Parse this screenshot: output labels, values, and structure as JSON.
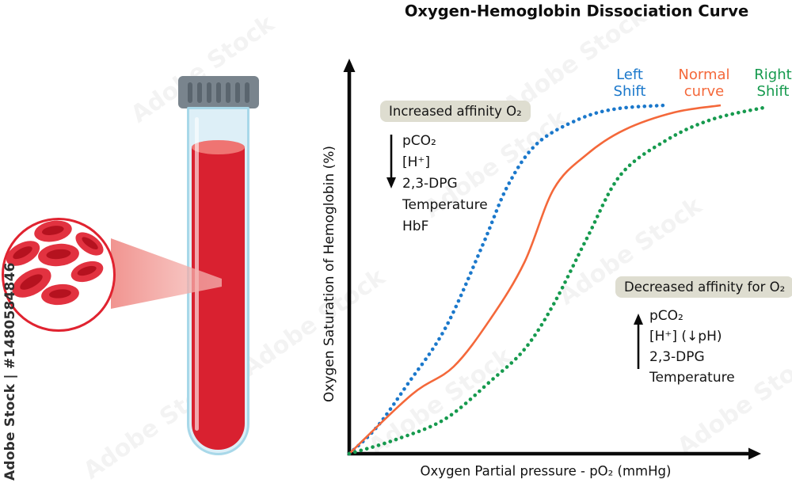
{
  "watermark": {
    "sidebar_label": "Adobe Stock | #1480584846",
    "tile_label": "Adobe Stock"
  },
  "chart_data": {
    "type": "line",
    "title": "Oxygen-Hemoglobin Dissociation Curve",
    "xlabel": "Oxygen Partial pressure - pO₂ (mmHg)",
    "ylabel": "Oxygen Saturation of Hemoglobin (%)",
    "x_range_mmHg": [
      0,
      100
    ],
    "y_range_percent": [
      0,
      100
    ],
    "axis_ticks_shown": false,
    "grid": false,
    "legend_position": "top-right",
    "series": [
      {
        "name": "Left Shift",
        "label": "Left\nShift",
        "color": "#1b78cb",
        "style": "dotted",
        "points": [
          [
            0,
            0
          ],
          [
            6.5,
            7.5
          ],
          [
            14,
            20
          ],
          [
            23,
            36
          ],
          [
            32,
            60
          ],
          [
            38,
            77
          ],
          [
            45,
            89
          ],
          [
            55,
            96
          ],
          [
            64,
            99
          ],
          [
            75.5,
            100
          ]
        ]
      },
      {
        "name": "Normal curve",
        "label": "Normal\ncurve",
        "color": "#f4683a",
        "style": "solid",
        "points": [
          [
            0,
            0
          ],
          [
            15,
            17
          ],
          [
            25,
            25
          ],
          [
            34,
            39
          ],
          [
            42,
            55
          ],
          [
            49,
            76
          ],
          [
            57,
            86
          ],
          [
            66,
            93
          ],
          [
            78,
            98
          ],
          [
            89,
            100
          ]
        ]
      },
      {
        "name": "Right Shift",
        "label": "Right\nShift",
        "color": "#169a4e",
        "style": "dotted",
        "points": [
          [
            0,
            0
          ],
          [
            11,
            4
          ],
          [
            23,
            10
          ],
          [
            34,
            21
          ],
          [
            42,
            30
          ],
          [
            49,
            43
          ],
          [
            57,
            62
          ],
          [
            65,
            80
          ],
          [
            76,
            90
          ],
          [
            87,
            96
          ],
          [
            100,
            99.5
          ]
        ]
      }
    ]
  },
  "annotations": {
    "increased": {
      "title": "Increased affinity O₂",
      "items": [
        "pCO₂",
        "[H⁺]",
        "2,3-DPG",
        "Temperature",
        "HbF"
      ],
      "arrow_direction": "down",
      "box_color": "#deddd0"
    },
    "decreased": {
      "title": "Decreased affinity for O₂",
      "items": [
        "pCO₂",
        "[H⁺] (↓pH)",
        "2,3-DPG",
        "Temperature"
      ],
      "arrow_direction": "up",
      "box_color": "#deddd0"
    }
  },
  "illustration": {
    "tube": {
      "cap_color": "#79848d",
      "cap_ridge_color": "#5a656e",
      "glass_color": "#ddeff7",
      "glass_border_color": "#a8d8e9",
      "blood_color": "#d92130",
      "blood_surface_color": "#ef7472"
    },
    "magnifier": {
      "border_color": "#e02330",
      "cell_color": "#e23240",
      "cell_inner_color": "#b5121f",
      "cell_count": 7
    }
  }
}
